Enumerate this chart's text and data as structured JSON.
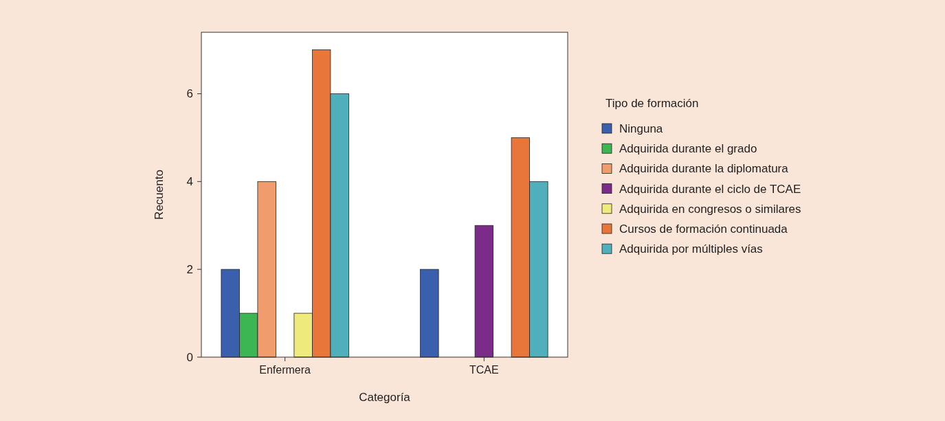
{
  "chart_data": {
    "type": "bar",
    "xlabel": "Categoría",
    "ylabel": "Recuento",
    "legend_title": "Tipo de formación",
    "legend": "right",
    "grid": false,
    "categories": [
      "Enfermera",
      "TCAE"
    ],
    "ylim": [
      0,
      7.4
    ],
    "yticks": [
      0,
      2,
      4,
      6
    ],
    "series": [
      {
        "name": "Ninguna",
        "color": "#3a5fad",
        "values": [
          2,
          2
        ]
      },
      {
        "name": "Adquirida durante el grado",
        "color": "#3cb553",
        "values": [
          1,
          null
        ]
      },
      {
        "name": "Adquirida durante la diplomatura",
        "color": "#f09c6c",
        "values": [
          4,
          null
        ]
      },
      {
        "name": "Adquirida durante el ciclo de TCAE",
        "color": "#7b2b88",
        "values": [
          null,
          3
        ]
      },
      {
        "name": "Adquirida en congresos o similares",
        "color": "#eeea7c",
        "values": [
          1,
          null
        ]
      },
      {
        "name": "Cursos de formación continuada",
        "color": "#e8763a",
        "values": [
          7,
          5
        ]
      },
      {
        "name": "Adquirida por múltiples vías",
        "color": "#4fb0bc",
        "values": [
          6,
          4
        ]
      }
    ]
  }
}
